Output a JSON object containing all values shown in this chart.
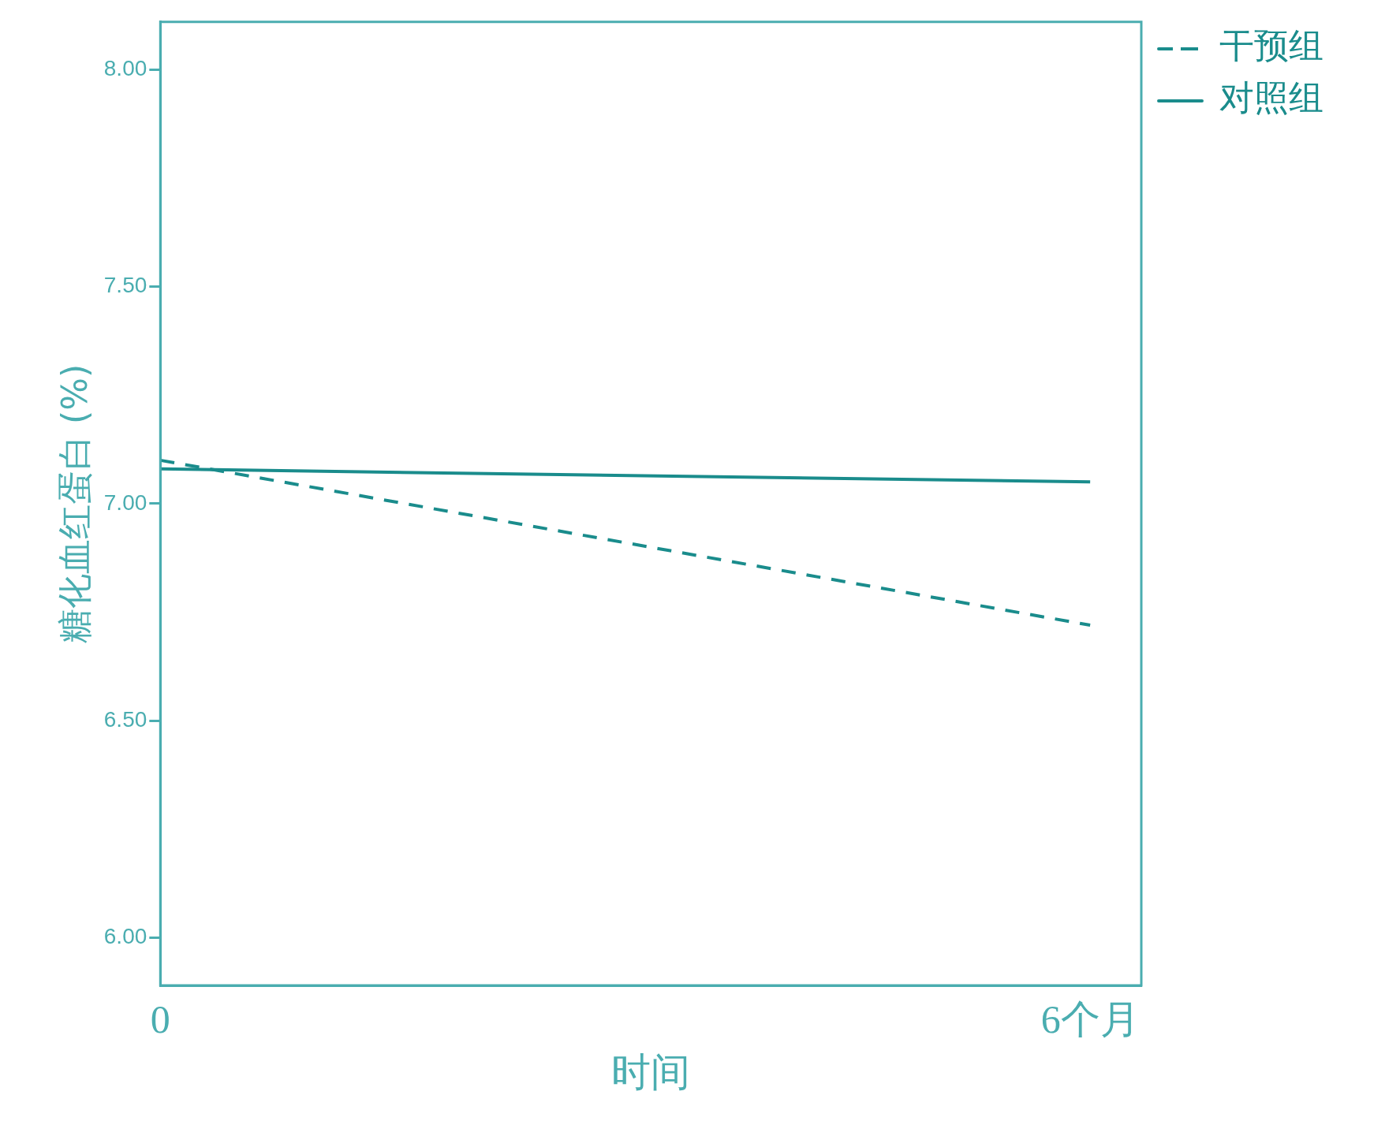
{
  "chart_data": {
    "type": "line",
    "xlabel": "时间",
    "ylabel": "糖化血红蛋白 (%)",
    "x": [
      0,
      6
    ],
    "xlim": [
      0,
      6.33
    ],
    "xticks": [
      {
        "value": 0,
        "label": "0"
      },
      {
        "value": 6,
        "label": "6个月"
      }
    ],
    "ylim": [
      5.89,
      8.11
    ],
    "yticks": [
      {
        "value": 6,
        "label": "6.00"
      },
      {
        "value": 6.5,
        "label": "6.50"
      },
      {
        "value": 7,
        "label": "7.00"
      },
      {
        "value": 7.5,
        "label": "7.50"
      },
      {
        "value": 8,
        "label": "8.00"
      }
    ],
    "series": [
      {
        "name": "干预组",
        "color": "#1a8c8c",
        "line_style": "dashed",
        "values": [
          7.1,
          6.72
        ]
      },
      {
        "name": "对照组",
        "color": "#1a8c8c",
        "line_style": "solid",
        "values": [
          7.08,
          7.05
        ]
      }
    ],
    "grid": false,
    "legend": "top right",
    "marker": "none"
  }
}
